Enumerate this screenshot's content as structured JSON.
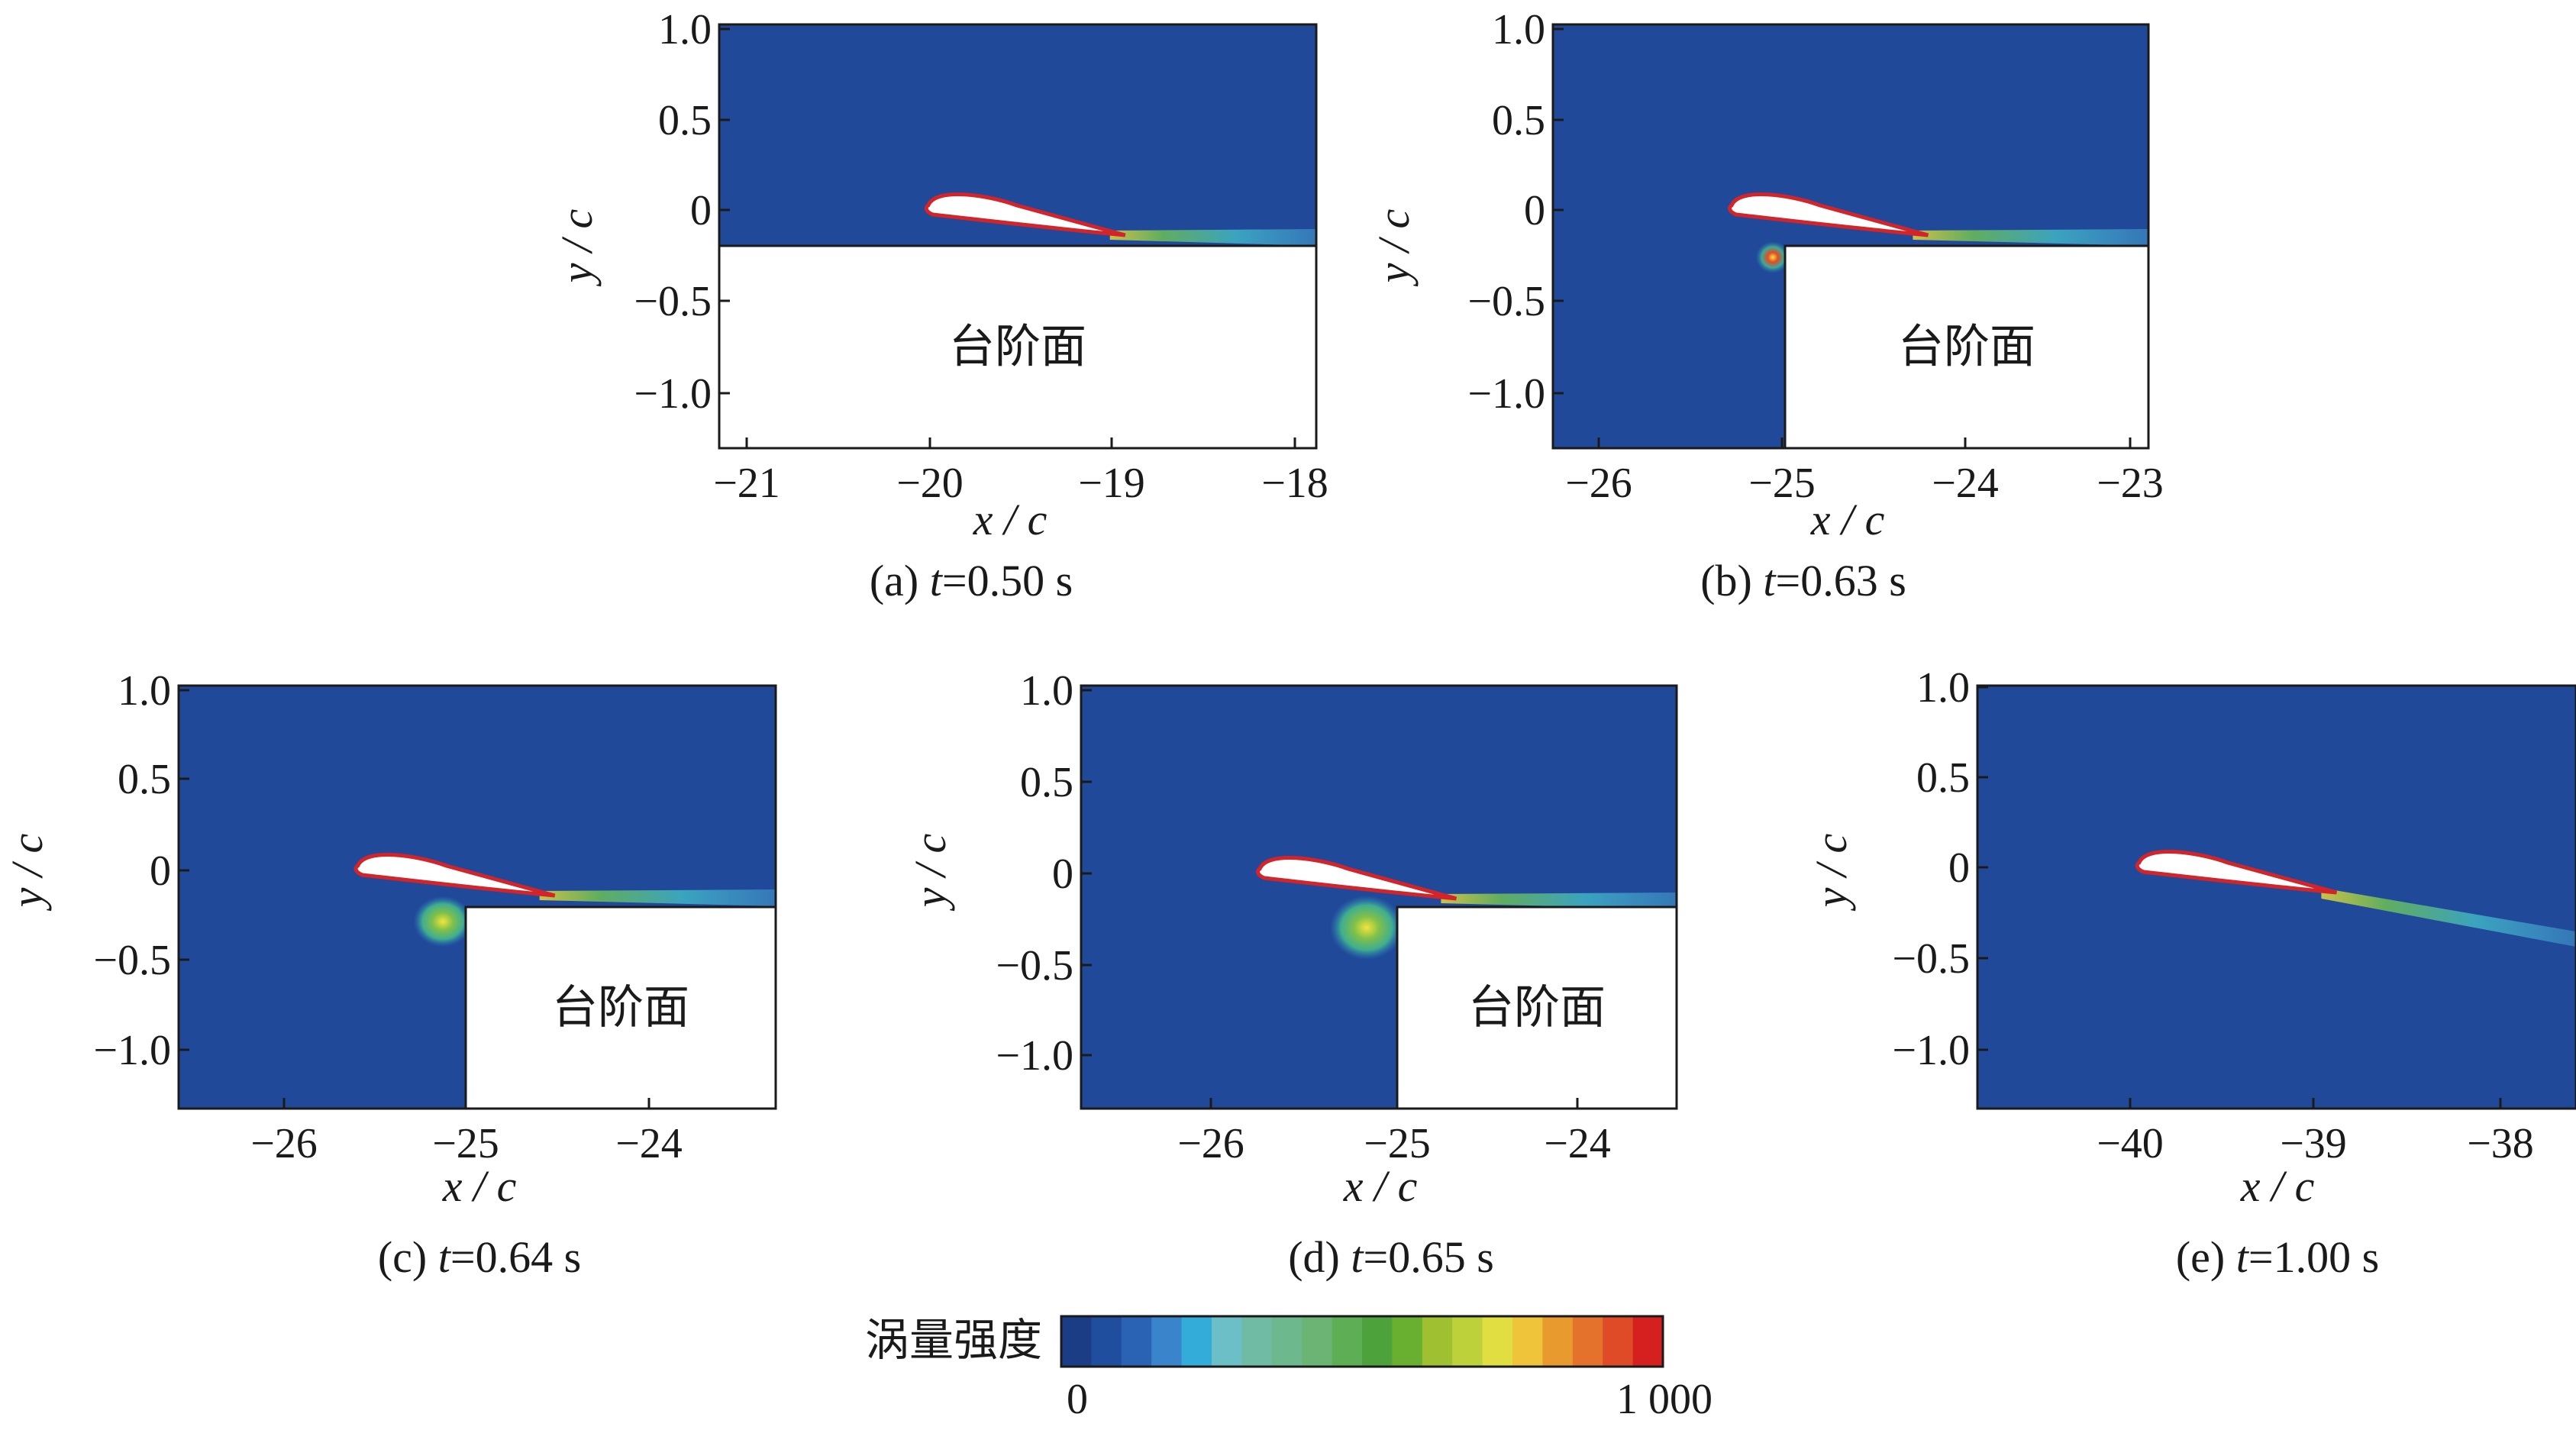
{
  "panels": [
    {
      "caption": {
        "label": "(a)",
        "var": "t",
        "eq": "=",
        "value": "0.50 s"
      },
      "xticks": [
        "−21",
        "−20",
        "−19",
        "−18"
      ],
      "yticks": [
        "1.0",
        "0.5",
        "0",
        "−0.5",
        "−1.0"
      ],
      "xlabel": {
        "v": "x",
        "s": "/",
        "c": "c"
      },
      "ylabel": {
        "v": "y",
        "s": "/",
        "c": "c"
      },
      "step_label": "台阶面"
    },
    {
      "caption": {
        "label": "(b)",
        "var": "t",
        "eq": "=",
        "value": "0.63 s"
      },
      "xticks": [
        "−26",
        "−25",
        "−24",
        "−23"
      ],
      "yticks": [
        "1.0",
        "0.5",
        "0",
        "−0.5",
        "−1.0"
      ],
      "xlabel": {
        "v": "x",
        "s": "/",
        "c": "c"
      },
      "ylabel": {
        "v": "y",
        "s": "/",
        "c": "c"
      },
      "step_label": "台阶面"
    },
    {
      "caption": {
        "label": "(c)",
        "var": "t",
        "eq": "=",
        "value": "0.64 s"
      },
      "xticks": [
        "−26",
        "−25",
        "−24"
      ],
      "yticks": [
        "1.0",
        "0.5",
        "0",
        "−0.5",
        "−1.0"
      ],
      "xlabel": {
        "v": "x",
        "s": "/",
        "c": "c"
      },
      "ylabel": {
        "v": "y",
        "s": "/",
        "c": "c"
      },
      "step_label": "台阶面"
    },
    {
      "caption": {
        "label": "(d)",
        "var": "t",
        "eq": "=",
        "value": "0.65 s"
      },
      "xticks": [
        "−26",
        "−25",
        "−24"
      ],
      "yticks": [
        "1.0",
        "0.5",
        "0",
        "−0.5",
        "−1.0"
      ],
      "xlabel": {
        "v": "x",
        "s": "/",
        "c": "c"
      },
      "ylabel": {
        "v": "y",
        "s": "/",
        "c": "c"
      },
      "step_label": "台阶面"
    },
    {
      "caption": {
        "label": "(e)",
        "var": "t",
        "eq": "=",
        "value": "1.00 s"
      },
      "xticks": [
        "−40",
        "−39",
        "−38"
      ],
      "yticks": [
        "1.0",
        "0.5",
        "0",
        "−0.5",
        "−1.0"
      ],
      "xlabel": {
        "v": "x",
        "s": "/",
        "c": "c"
      },
      "ylabel": {
        "v": "y",
        "s": "/",
        "c": "c"
      },
      "step_label": ""
    }
  ],
  "colorbar": {
    "title": "涡量强度",
    "min_label": "0",
    "max_label": "1 000",
    "min": 0,
    "max": 1000,
    "colors": [
      "#1b3d86",
      "#1f4e9e",
      "#2b63b4",
      "#3a84cc",
      "#33acd9",
      "#6cbfc7",
      "#6fbba4",
      "#6db88c",
      "#6bb474",
      "#5eae56",
      "#4ea23c",
      "#6ab030",
      "#9fc031",
      "#bdd13a",
      "#e0de40",
      "#efc43a",
      "#e99a2f",
      "#e4722c",
      "#df4b27",
      "#d5201f"
    ]
  },
  "colors": {
    "background_field": "#21499a",
    "airfoil_outline": "#d3242a",
    "wake": "#4cb6c9"
  }
}
